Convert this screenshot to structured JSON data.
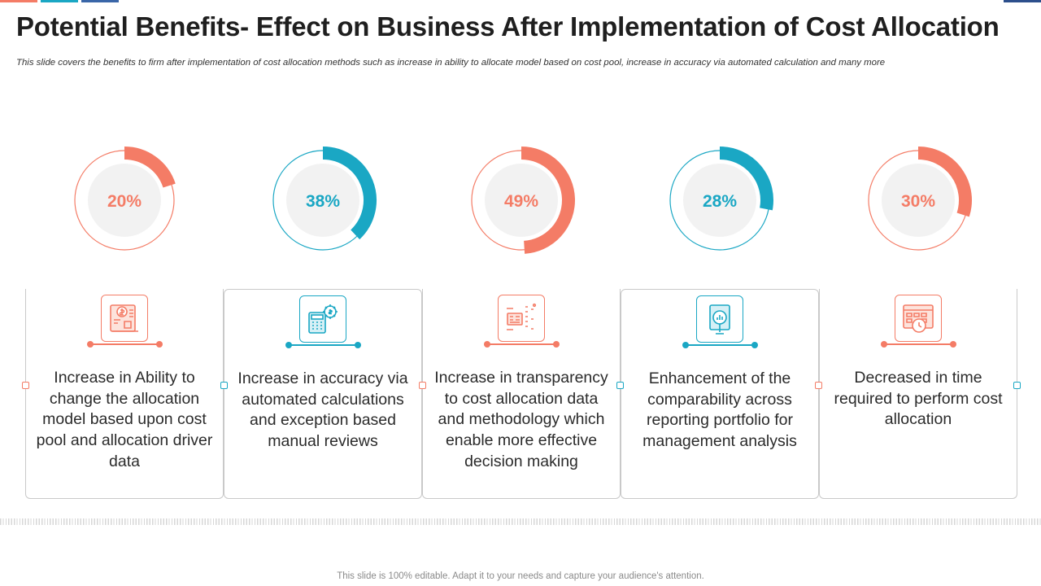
{
  "slide": {
    "title": "Potential Benefits- Effect on Business After Implementation of Cost Allocation",
    "subtitle": "This slide covers the benefits to firm after implementation  of cost allocation methods such as increase in ability to allocate model based on cost pool, increase in accuracy via automated calculation and many more",
    "footer": "This slide is 100% editable. Adapt it to your needs and capture your audience's attention."
  },
  "colors": {
    "coral": "#f47c66",
    "teal": "#1aa7c4",
    "inner": "#f2f2f2"
  },
  "chart_data": {
    "type": "pie",
    "subtype": "progress-donut",
    "title": "",
    "categories": [
      "Increase in Ability to change the allocation model based upon cost pool and allocation driver data",
      "Increase in accuracy via automated calculations and exception based manual reviews",
      "Increase in transparency to cost allocation data and methodology which enable more effective decision making",
      "Enhancement  of the comparability across reporting portfolio for management  analysis",
      "Decreased in time required to perform cost allocation"
    ],
    "values": [
      20,
      38,
      49,
      28,
      30
    ],
    "labels": [
      "20%",
      "38%",
      "49%",
      "28%",
      "30%"
    ],
    "unit": "%",
    "colors": [
      "#f47c66",
      "#1aa7c4",
      "#f47c66",
      "#1aa7c4",
      "#f47c66"
    ]
  },
  "benefits": [
    {
      "text": "Increase in Ability to change the allocation model based upon cost pool and allocation driver data",
      "icon": "dollar-document-icon",
      "color": "#f47c66"
    },
    {
      "text": "Increase in accuracy via automated calculations and exception based manual reviews",
      "icon": "calculator-gear-icon",
      "color": "#1aa7c4"
    },
    {
      "text": "Increase in transparency to cost allocation data and methodology which enable more effective decision making",
      "icon": "circuit-board-icon",
      "color": "#f47c66"
    },
    {
      "text": "Enhancement  of the comparability across reporting portfolio for management  analysis",
      "icon": "magnifier-report-icon",
      "color": "#1aa7c4"
    },
    {
      "text": "Decreased in time required to perform cost allocation",
      "icon": "calendar-clock-icon",
      "color": "#f47c66"
    }
  ]
}
